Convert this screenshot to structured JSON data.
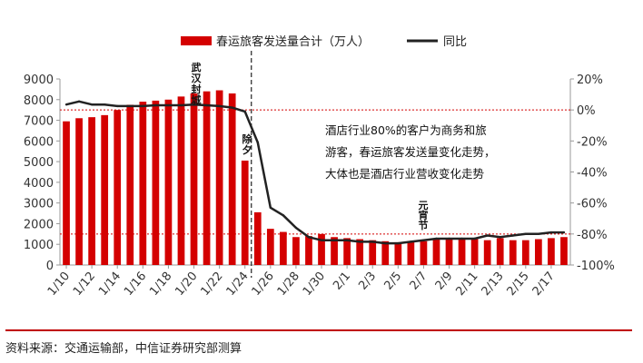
{
  "chart_data": {
    "type": "bar+line",
    "categories": [
      "1/10",
      "1/11",
      "1/12",
      "1/13",
      "1/14",
      "1/15",
      "1/16",
      "1/17",
      "1/18",
      "1/19",
      "1/20",
      "1/21",
      "1/22",
      "1/23",
      "1/24",
      "1/25",
      "1/26",
      "1/27",
      "1/28",
      "1/29",
      "1/30",
      "1/31",
      "2/1",
      "2/2",
      "2/3",
      "2/4",
      "2/5",
      "2/6",
      "2/7",
      "2/8",
      "2/9",
      "2/10",
      "2/11",
      "2/12",
      "2/13",
      "2/14",
      "2/15",
      "2/16",
      "2/17",
      "2/18"
    ],
    "x_tick_labels": [
      "1/10",
      "1/12",
      "1/14",
      "1/16",
      "1/18",
      "1/20",
      "1/22",
      "1/24",
      "1/26",
      "1/28",
      "1/30",
      "2/1",
      "2/3",
      "2/5",
      "2/7",
      "2/9",
      "2/11",
      "2/13",
      "2/15",
      "2/17"
    ],
    "series": [
      {
        "name": "春运旅客发送量合计（万人）",
        "axis": "left",
        "kind": "bar",
        "color": "#d40000",
        "values": [
          6950,
          7100,
          7150,
          7250,
          7500,
          7750,
          7900,
          7950,
          8000,
          8150,
          8300,
          8400,
          8450,
          8300,
          5050,
          2550,
          1750,
          1600,
          1350,
          1400,
          1500,
          1350,
          1300,
          1250,
          1200,
          1150,
          1100,
          1150,
          1150,
          1250,
          1300,
          1250,
          1250,
          1200,
          1300,
          1200,
          1200,
          1250,
          1300,
          1350
        ]
      },
      {
        "name": "同比",
        "axis": "right",
        "kind": "line",
        "color": "#222222",
        "values": [
          3.5,
          5.5,
          3.5,
          3.5,
          2.5,
          2.5,
          2.5,
          3,
          3,
          3,
          3.5,
          3,
          2.5,
          1.5,
          -1,
          -21,
          -63,
          -68,
          -76,
          -82,
          -84,
          -84,
          -84,
          -85,
          -85,
          -86,
          -86,
          -85,
          -84,
          -83,
          -83,
          -83,
          -83,
          -81,
          -82,
          -81,
          -80,
          -80,
          -79,
          -79
        ]
      }
    ],
    "y_left": {
      "min": 0,
      "max": 9000,
      "ticks": [
        "0",
        "1000",
        "2000",
        "3000",
        "4000",
        "5000",
        "6000",
        "7000",
        "8000",
        "9000"
      ]
    },
    "y_right": {
      "min": -100,
      "max": 20,
      "ticks": [
        "-100%",
        "-80%",
        "-60%",
        "-40%",
        "-20%",
        "0%",
        "20%"
      ]
    },
    "reference_lines": [
      {
        "axis": "right",
        "value": 0,
        "color": "#d40000",
        "style": "dotted"
      },
      {
        "axis": "right",
        "value": -80,
        "color": "#d40000",
        "style": "dotted"
      }
    ],
    "divider_after": "1/24",
    "annotations": {
      "wuhan": "武汉封城",
      "chuxi": "除夕",
      "yuanxiao": "元宵节",
      "callout": [
        "酒店行业80%的客户为商务和旅",
        "游客，春运旅客发送量变化走势，",
        "大体也是酒店行业营收变化走势"
      ]
    },
    "legend_position": "top-center"
  },
  "source": "资料来源：交通运输部，中信证券研究部测算"
}
